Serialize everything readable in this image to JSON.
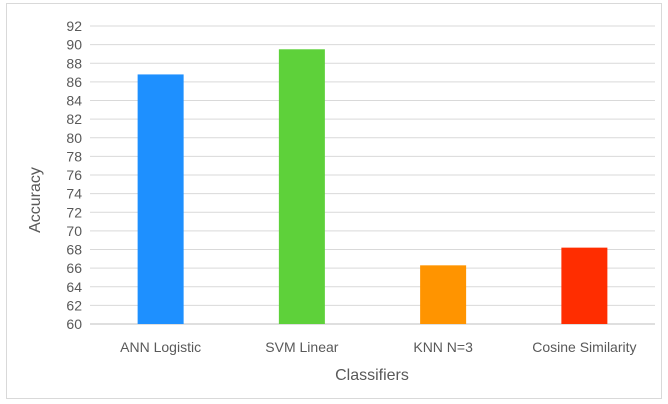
{
  "chart_data": {
    "type": "bar",
    "title": "",
    "xlabel": "Classifiers",
    "ylabel": "Accuracy",
    "categories": [
      "ANN Logistic",
      "SVM Linear",
      "KNN N=3",
      "Cosine Similarity"
    ],
    "values": [
      86.8,
      89.5,
      66.3,
      68.2
    ],
    "colors": [
      "#1e90ff",
      "#5ed13a",
      "#ff9400",
      "#ff2d00"
    ],
    "ylim": [
      60,
      92
    ],
    "yticks": [
      60,
      62,
      64,
      66,
      68,
      70,
      72,
      74,
      76,
      78,
      80,
      82,
      84,
      86,
      88,
      90,
      92
    ],
    "grid": true,
    "legend": "none"
  }
}
